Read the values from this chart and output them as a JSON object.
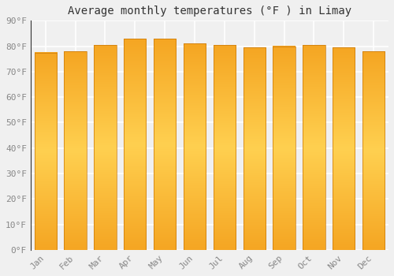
{
  "title": "Average monthly temperatures (°F ) in Limay",
  "months": [
    "Jan",
    "Feb",
    "Mar",
    "Apr",
    "May",
    "Jun",
    "Jul",
    "Aug",
    "Sep",
    "Oct",
    "Nov",
    "Dec"
  ],
  "values": [
    77.5,
    78.0,
    80.5,
    83.0,
    83.0,
    81.0,
    80.5,
    79.5,
    80.0,
    80.5,
    79.5,
    78.0
  ],
  "bar_color_main": "#F5A623",
  "bar_color_light": "#FDD26E",
  "bar_color_dark": "#E08C00",
  "ylim": [
    0,
    90
  ],
  "yticks": [
    0,
    10,
    20,
    30,
    40,
    50,
    60,
    70,
    80,
    90
  ],
  "ytick_labels": [
    "0°F",
    "10°F",
    "20°F",
    "30°F",
    "40°F",
    "50°F",
    "60°F",
    "70°F",
    "80°F",
    "90°F"
  ],
  "background_color": "#f0f0f0",
  "grid_color": "#ffffff",
  "title_fontsize": 10,
  "tick_fontsize": 8,
  "font_family": "monospace",
  "bar_width": 0.75
}
